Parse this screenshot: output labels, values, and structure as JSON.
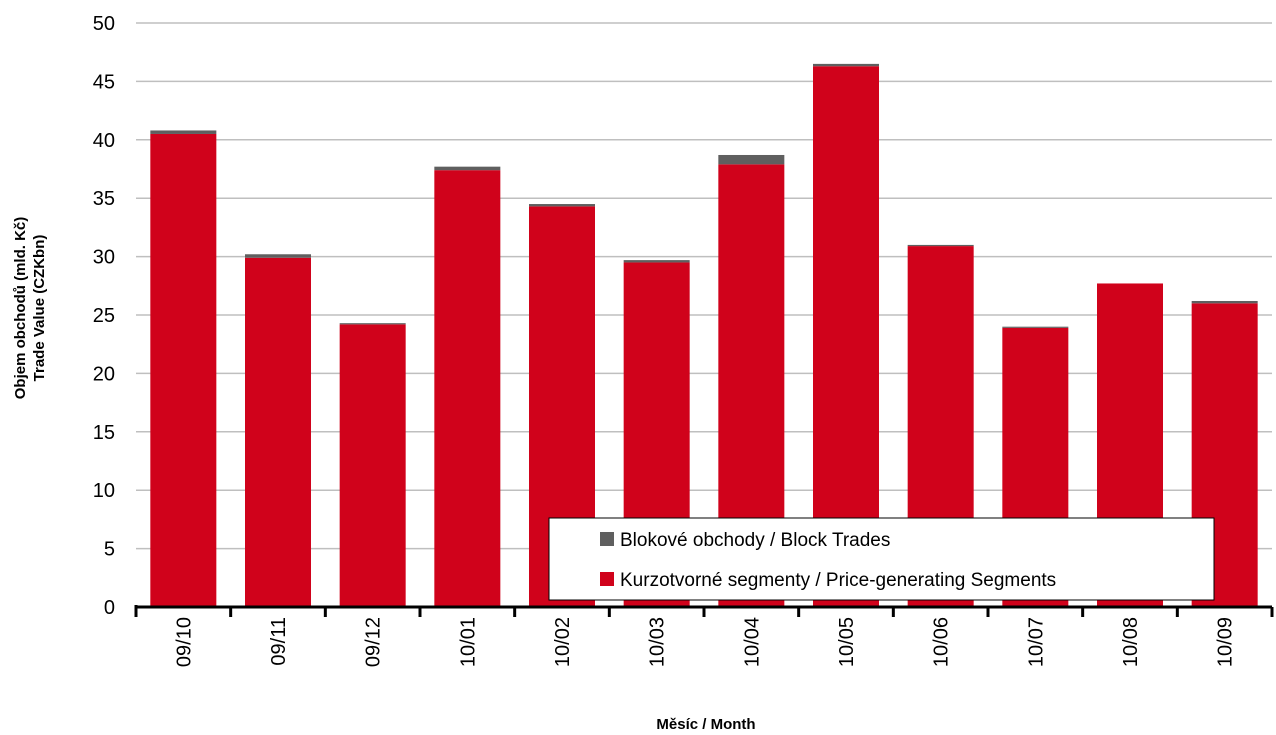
{
  "chart_data": {
    "type": "bar",
    "stacked": true,
    "categories": [
      "09/10",
      "09/11",
      "09/12",
      "10/01",
      "10/02",
      "10/03",
      "10/04",
      "10/05",
      "10/06",
      "10/07",
      "10/08",
      "10/09"
    ],
    "series": [
      {
        "name": "Kurzotvorné segmenty / Price-generating Segments",
        "color": "#D0021B",
        "values": [
          40.5,
          29.9,
          24.2,
          37.4,
          34.3,
          29.5,
          37.9,
          46.3,
          30.9,
          23.9,
          27.7,
          26.0
        ]
      },
      {
        "name": "Blokové obchody / Block Trades",
        "color": "#5F5F5F",
        "values": [
          0.3,
          0.3,
          0.1,
          0.3,
          0.2,
          0.2,
          0.8,
          0.2,
          0.1,
          0.1,
          0.0,
          0.2
        ]
      }
    ],
    "ylim": [
      0,
      50
    ],
    "yticks": [
      0,
      5,
      10,
      15,
      20,
      25,
      30,
      35,
      40,
      45,
      50
    ],
    "ylabel_line1": "Objem obchodů (mld. Kč)",
    "ylabel_line2": "Trade Value (CZKbn)",
    "xlabel": "Měsíc / Month",
    "grid": true,
    "legend_position": "bottom-center-inside"
  }
}
